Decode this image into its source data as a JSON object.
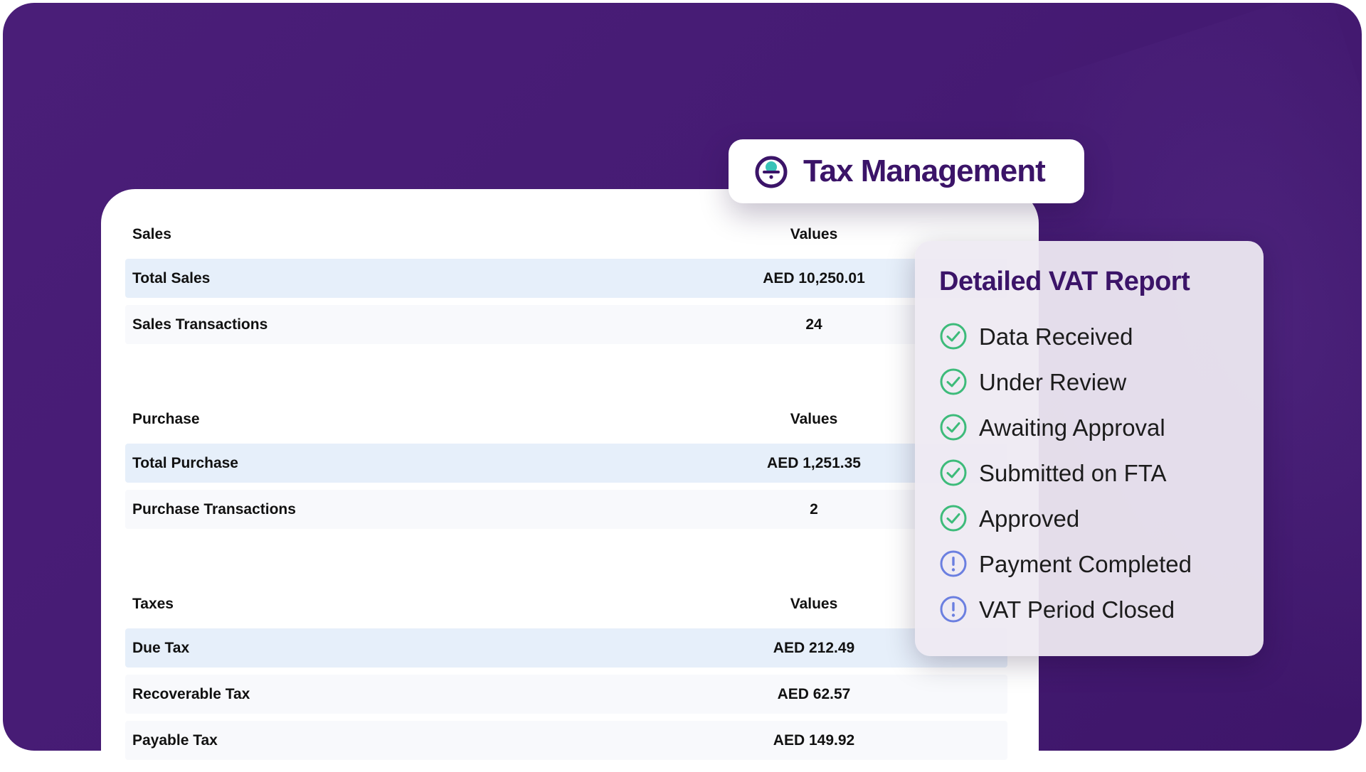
{
  "header": {
    "app_title": "Tax Management"
  },
  "report": {
    "sections": [
      {
        "title": "Sales",
        "values_label": "Values",
        "rows": [
          {
            "label": "Total Sales",
            "value": "AED 10,250.01"
          },
          {
            "label": "Sales Transactions",
            "value": "24"
          }
        ]
      },
      {
        "title": "Purchase",
        "values_label": "Values",
        "rows": [
          {
            "label": "Total Purchase",
            "value": "AED 1,251.35"
          },
          {
            "label": "Purchase Transactions",
            "value": "2"
          }
        ]
      },
      {
        "title": "Taxes",
        "values_label": "Values",
        "rows": [
          {
            "label": "Due Tax",
            "value": "AED 212.49"
          },
          {
            "label": "Recoverable Tax",
            "value": "AED 62.57"
          },
          {
            "label": "Payable Tax",
            "value": "AED 149.92"
          }
        ]
      }
    ]
  },
  "vat_report": {
    "title": "Detailed VAT Report",
    "statuses": [
      {
        "label": "Data Received",
        "state": "done",
        "icon": "check-circle-icon"
      },
      {
        "label": "Under Review",
        "state": "done",
        "icon": "check-circle-icon"
      },
      {
        "label": "Awaiting Approval",
        "state": "done",
        "icon": "check-circle-icon"
      },
      {
        "label": "Submitted on FTA",
        "state": "done",
        "icon": "check-circle-icon"
      },
      {
        "label": "Approved",
        "state": "done",
        "icon": "check-circle-icon"
      },
      {
        "label": "Payment Completed",
        "state": "pending",
        "icon": "exclamation-circle-icon"
      },
      {
        "label": "VAT Period Closed",
        "state": "pending",
        "icon": "exclamation-circle-icon"
      }
    ]
  },
  "colors": {
    "background": "#461b74",
    "brand": "#3b1468",
    "row_highlight": "#e6effa",
    "done": "#3dbb7a",
    "pending": "#6b7fe0"
  }
}
